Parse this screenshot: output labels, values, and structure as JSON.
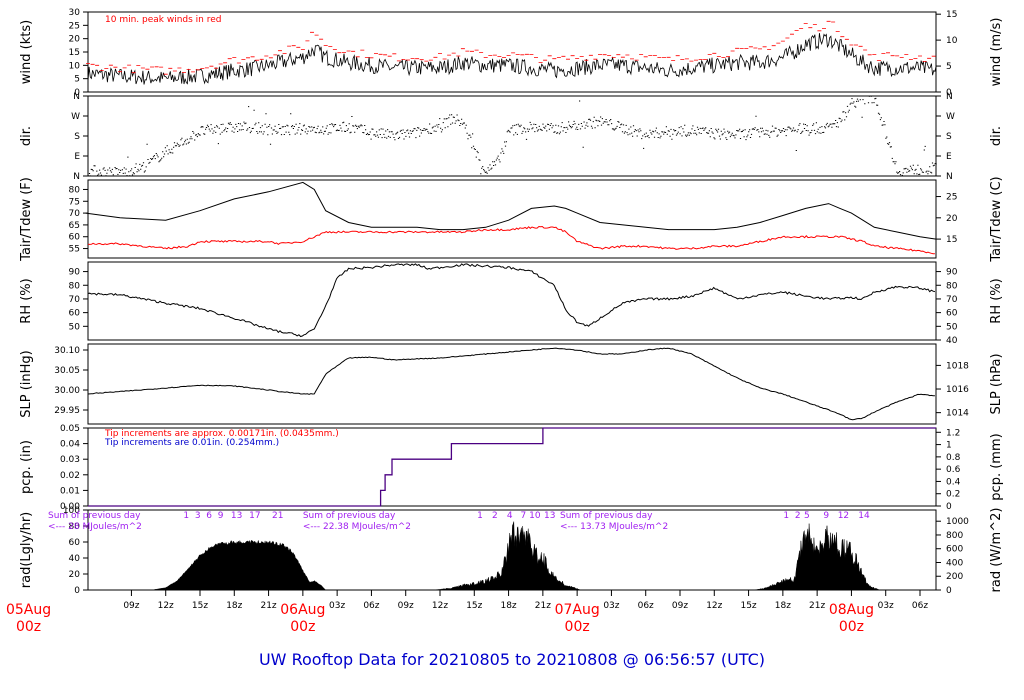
{
  "title": "UW Rooftop Data for 20210805  to  20210808 @ 06:56:57  (UTC)",
  "colors": {
    "peak": "#ff0000",
    "dew": "#ff0000",
    "pcp": "#4b0082",
    "note_red": "#ff0000",
    "note_blue": "#0000cc",
    "note_purple": "#a020f0",
    "date": "#ff0000",
    "title": "#0000cc"
  },
  "x_axis": {
    "hour_ticks": [
      9,
      12,
      15,
      18,
      21,
      24,
      27,
      30,
      33,
      36,
      39,
      42,
      45,
      48,
      51,
      54,
      57,
      60,
      63,
      66,
      69,
      72,
      75,
      78
    ],
    "hour_labels": [
      "09z",
      "12z",
      "15z",
      "18z",
      "21z",
      "03z",
      "06z",
      "09z",
      "12z",
      "15z",
      "18z",
      "21z",
      "03z",
      "06z",
      "09z",
      "12z",
      "15z",
      "18z",
      "21z",
      "03z",
      "06z"
    ],
    "hour_label_positions": [
      9,
      12,
      15,
      18,
      21,
      27,
      30,
      33,
      36,
      39,
      42,
      45,
      51,
      54,
      57,
      60,
      63,
      66,
      69,
      75,
      78
    ],
    "date_labels": [
      {
        "h": 0,
        "day": "05Aug",
        "z": "00z"
      },
      {
        "h": 24,
        "day": "06Aug",
        "z": "00z"
      },
      {
        "h": 48,
        "day": "07Aug",
        "z": "00z"
      },
      {
        "h": 72,
        "day": "08Aug",
        "z": "00z"
      }
    ]
  },
  "panels": [
    {
      "id": "wind",
      "left_label": "wind (kts)",
      "right_label": "wind (m/s)",
      "ylim": [
        0,
        30
      ],
      "left_ticks": [
        0,
        5,
        10,
        15,
        20,
        25,
        30
      ],
      "right_ticks": [
        0,
        5,
        10,
        15
      ],
      "right_factor": 0.514,
      "note": "10 min. peak winds in red"
    },
    {
      "id": "dir",
      "left_label": "dir.",
      "right_label": "dir.",
      "ylim": [
        0,
        360
      ],
      "left_ticks": [
        "N",
        "E",
        "S",
        "W",
        "N"
      ],
      "right_ticks": [
        "N",
        "E",
        "S",
        "W",
        "N"
      ]
    },
    {
      "id": "temp",
      "left_label": "Tair/Tdew (F)",
      "right_label": "Tair/Tdew (C)",
      "ylim": [
        51,
        84
      ],
      "left_ticks": [
        55,
        60,
        65,
        70,
        75,
        80
      ],
      "right_ticks": [
        15,
        20,
        25
      ]
    },
    {
      "id": "rh",
      "left_label": "RH (%)",
      "right_label": "RH (%)",
      "ylim": [
        40,
        97
      ],
      "left_ticks": [
        50,
        60,
        70,
        80,
        90
      ],
      "right_ticks": [
        40,
        50,
        60,
        70,
        80,
        90
      ]
    },
    {
      "id": "slp",
      "left_label": "SLP (inHg)",
      "right_label": "SLP (hPa)",
      "ylim": [
        29.915,
        30.115
      ],
      "left_ticks": [
        "29.95",
        "30.00",
        "30.05",
        "30.10"
      ],
      "right_ticks": [
        1014,
        1016,
        1018,
        1020
      ]
    },
    {
      "id": "pcp",
      "left_label": "pcp. (in)",
      "right_label": "pcp. (mm)",
      "ylim": [
        0,
        0.05
      ],
      "left_ticks": [
        "0.00",
        "0.01",
        "0.02",
        "0.03",
        "0.04",
        "0.05"
      ],
      "right_ticks": [
        "0",
        "0.2",
        "0.4",
        "0.6",
        "0.8",
        "1",
        "1.2"
      ],
      "note_red": "Tip increments are approx. 0.00171in. (0.0435mm.)",
      "note_blue": "Tip increments are 0.01in. (0.254mm.)"
    },
    {
      "id": "rad",
      "left_label": "rad(Lgly/hr)",
      "right_label": "rad (W/m^2)",
      "ylim": [
        0,
        100
      ],
      "left_ticks": [
        0,
        20,
        40,
        60,
        80,
        100
      ],
      "right_ticks": [
        0,
        200,
        400,
        600,
        800,
        1000
      ]
    }
  ],
  "chart_data": {
    "type": "line",
    "x_unit": "hours since 20210805 00z",
    "x_range": [
      5.2,
      79.4
    ],
    "wind_peak_label": "10 min. peak winds in red",
    "wind_kts": {
      "x": [
        5,
        8,
        12,
        15,
        18,
        20,
        22,
        24,
        25,
        26,
        28,
        30,
        32,
        34,
        36,
        38,
        40,
        42,
        44,
        46,
        48,
        50,
        52,
        54,
        56,
        58,
        60,
        62,
        64,
        66,
        67,
        68,
        69,
        70,
        71,
        72,
        73,
        74,
        76,
        78,
        79.4
      ],
      "y": [
        7,
        6,
        5,
        6,
        8,
        9,
        11,
        13,
        16,
        13,
        11,
        10,
        9,
        9,
        9,
        11,
        10,
        10,
        9,
        8,
        9,
        10,
        10,
        9,
        8,
        9,
        10,
        11,
        11,
        13,
        15,
        18,
        19,
        20,
        17,
        14,
        11,
        9,
        9,
        9,
        8
      ]
    },
    "wind_peak_kts": {
      "x": [
        5,
        8,
        12,
        15,
        18,
        20,
        22,
        24,
        25,
        26,
        28,
        30,
        32,
        34,
        36,
        38,
        40,
        42,
        44,
        46,
        48,
        50,
        52,
        54,
        56,
        58,
        60,
        62,
        64,
        66,
        67,
        68,
        69,
        70,
        71,
        72,
        73,
        74,
        76,
        78,
        79.4
      ],
      "y": [
        10,
        9,
        8,
        9,
        12,
        13,
        15,
        17,
        23,
        18,
        15,
        14,
        13,
        13,
        13,
        15,
        14,
        14,
        13,
        12,
        13,
        14,
        14,
        13,
        12,
        13,
        14,
        15,
        16,
        19,
        22,
        25,
        24,
        26,
        23,
        19,
        16,
        13,
        14,
        13,
        12
      ]
    },
    "dir_deg": {
      "x": [
        5,
        8,
        10,
        12,
        14,
        15,
        17,
        19,
        21,
        23,
        24,
        26,
        28,
        30,
        32,
        34,
        35,
        36,
        37,
        38,
        39,
        40,
        41,
        42,
        43,
        44,
        46,
        48,
        50,
        52,
        54,
        56,
        58,
        60,
        62,
        64,
        66,
        68,
        70,
        71,
        72,
        73,
        74,
        76,
        78,
        79.4
      ],
      "y": [
        25,
        15,
        40,
        110,
        170,
        200,
        215,
        220,
        210,
        205,
        215,
        210,
        220,
        195,
        180,
        195,
        215,
        220,
        260,
        240,
        110,
        20,
        60,
        200,
        215,
        220,
        210,
        230,
        245,
        215,
        185,
        200,
        205,
        190,
        185,
        195,
        205,
        215,
        215,
        250,
        330,
        345,
        355,
        20,
        30,
        35
      ]
    },
    "tair_f": {
      "x": [
        5,
        8,
        12,
        15,
        18,
        21,
        24,
        25,
        26,
        28,
        30,
        32,
        34,
        36,
        38,
        40,
        42,
        44,
        46,
        47,
        48,
        50,
        52,
        54,
        56,
        58,
        60,
        62,
        64,
        66,
        68,
        70,
        71,
        72,
        73,
        74,
        76,
        78,
        79.4
      ],
      "y": [
        70,
        68,
        67,
        71,
        76,
        79,
        83,
        80,
        71,
        66,
        64,
        64,
        64,
        63,
        63,
        64,
        67,
        72,
        73,
        72,
        70,
        66,
        65,
        64,
        63,
        63,
        63,
        64,
        66,
        69,
        72,
        74,
        72,
        70,
        67,
        64,
        62,
        60,
        59
      ]
    },
    "tdew_f": {
      "x": [
        5,
        8,
        10,
        12,
        14,
        15,
        18,
        21,
        22,
        24,
        26,
        28,
        30,
        32,
        34,
        36,
        38,
        40,
        42,
        44,
        46,
        47,
        48,
        50,
        52,
        54,
        56,
        58,
        60,
        62,
        64,
        66,
        68,
        70,
        71,
        72,
        73,
        74,
        76,
        78,
        79.4
      ],
      "y": [
        57,
        57,
        56,
        55,
        56,
        58,
        58,
        58,
        57,
        58,
        62,
        62,
        62,
        62,
        62,
        62,
        62,
        63,
        63,
        64,
        64,
        62,
        58,
        55,
        56,
        56,
        55,
        55,
        56,
        56,
        58,
        60,
        60,
        60,
        60,
        59,
        58,
        56,
        55,
        54,
        53
      ]
    },
    "rh_pct": {
      "x": [
        5,
        8,
        12,
        15,
        18,
        21,
        22,
        24,
        25,
        26,
        27,
        28,
        30,
        32,
        34,
        35,
        36,
        38,
        40,
        42,
        44,
        46,
        47,
        48,
        49,
        50,
        52,
        54,
        56,
        58,
        60,
        62,
        64,
        66,
        68,
        70,
        72,
        73,
        74,
        76,
        78,
        79.4
      ],
      "y": [
        74,
        73,
        67,
        63,
        56,
        48,
        46,
        43,
        48,
        65,
        85,
        92,
        93,
        95,
        95,
        92,
        93,
        95,
        94,
        93,
        90,
        80,
        62,
        53,
        50,
        56,
        67,
        70,
        70,
        72,
        78,
        70,
        73,
        75,
        72,
        70,
        71,
        70,
        75,
        79,
        78,
        75
      ]
    },
    "slp_inhg": {
      "x": [
        5,
        8,
        12,
        15,
        18,
        21,
        22,
        24,
        25,
        26,
        28,
        30,
        32,
        34,
        36,
        38,
        40,
        42,
        44,
        46,
        48,
        50,
        52,
        54,
        56,
        58,
        60,
        62,
        64,
        66,
        68,
        70,
        71,
        72,
        73,
        74,
        76,
        78,
        79.4
      ],
      "y": [
        29.99,
        29.996,
        30.005,
        30.012,
        30.01,
        30.0,
        29.996,
        29.99,
        29.99,
        30.04,
        30.08,
        30.082,
        30.075,
        30.078,
        30.08,
        30.085,
        30.09,
        30.095,
        30.1,
        30.105,
        30.1,
        30.09,
        30.09,
        30.1,
        30.105,
        30.09,
        30.06,
        30.03,
        30.005,
        29.99,
        29.97,
        29.95,
        29.94,
        29.925,
        29.93,
        29.945,
        29.97,
        29.99,
        29.985
      ]
    },
    "pcp_in": {
      "x": [
        5.2,
        30.8,
        30.8,
        31.2,
        31.2,
        31.8,
        31.8,
        37.0,
        37.0,
        41.0,
        41.0,
        45.0,
        45.0,
        79.4
      ],
      "y": [
        0,
        0,
        0.01,
        0.01,
        0.02,
        0.02,
        0.03,
        0.03,
        0.04,
        0.04,
        0.04,
        0.04,
        0.05,
        0.05
      ]
    },
    "rad_note": [
      {
        "h": 5.2,
        "line1": "Sum of previous day",
        "line2": "<--- 28 MJoules/m^2"
      },
      {
        "h": 27.5,
        "line1": "Sum of previous day",
        "line2": "<--- 22.38 MJoules/m^2"
      },
      {
        "h": 50.0,
        "line1": "Sum of previous day",
        "line2": "<--- 13.73 MJoules/m^2"
      }
    ],
    "rad_hour_marks": [
      {
        "h": 13.8,
        "t": "1"
      },
      {
        "h": 14.8,
        "t": "3"
      },
      {
        "h": 15.8,
        "t": "6"
      },
      {
        "h": 16.8,
        "t": "9"
      },
      {
        "h": 18.2,
        "t": "13"
      },
      {
        "h": 19.8,
        "t": "17"
      },
      {
        "h": 21.8,
        "t": "21"
      },
      {
        "h": 39.5,
        "t": "1"
      },
      {
        "h": 40.8,
        "t": "2"
      },
      {
        "h": 42.1,
        "t": "4"
      },
      {
        "h": 43.3,
        "t": "7"
      },
      {
        "h": 44.3,
        "t": "10"
      },
      {
        "h": 45.6,
        "t": "13"
      },
      {
        "h": 66.3,
        "t": "1"
      },
      {
        "h": 67.3,
        "t": "2"
      },
      {
        "h": 68.1,
        "t": "5"
      },
      {
        "h": 69.8,
        "t": "9"
      },
      {
        "h": 71.3,
        "t": "12"
      },
      {
        "h": 73.1,
        "t": "14"
      }
    ],
    "rad_lgly": [
      {
        "x": [
          10.8,
          12,
          13,
          14,
          15,
          16,
          17,
          18,
          19,
          20,
          21,
          22,
          22.5,
          23,
          23.5,
          24,
          24.6,
          25,
          25.6,
          26
        ],
        "y": [
          0,
          3,
          12,
          28,
          45,
          56,
          61,
          62,
          63,
          62,
          62,
          60,
          56,
          50,
          40,
          25,
          10,
          12,
          6,
          0
        ]
      },
      {
        "x": [
          35.5,
          37,
          38,
          39,
          40,
          41,
          41.5,
          42,
          42.5,
          43,
          43.5,
          44,
          44.5,
          45,
          45.5,
          46,
          47,
          48,
          48.3
        ],
        "y": [
          0,
          3,
          8,
          10,
          14,
          22,
          30,
          75,
          90,
          95,
          82,
          70,
          55,
          50,
          35,
          20,
          8,
          2,
          0
        ]
      },
      {
        "x": [
          63.5,
          64.5,
          65.5,
          66,
          66.5,
          67,
          67.5,
          68,
          68.3,
          68.8,
          69.3,
          70,
          70.5,
          71,
          71.5,
          72,
          72.5,
          73,
          73.5,
          74,
          74.5
        ],
        "y": [
          0,
          3,
          10,
          14,
          16,
          18,
          60,
          80,
          95,
          60,
          70,
          90,
          85,
          60,
          70,
          60,
          45,
          25,
          8,
          3,
          0
        ]
      }
    ]
  }
}
